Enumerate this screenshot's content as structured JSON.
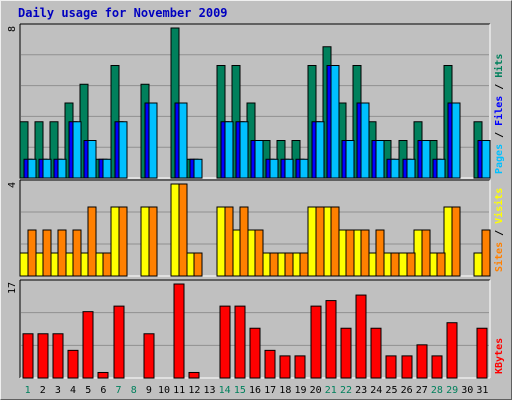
{
  "title": "Daily usage for November 2009",
  "chart_data": [
    {
      "type": "bar",
      "panel": "top",
      "ymax_label": "8",
      "ylim": [
        0,
        8
      ],
      "legend": [
        "Pages",
        "Files",
        "Hits"
      ],
      "grid": true,
      "categories": [
        "1",
        "2",
        "3",
        "4",
        "5",
        "6",
        "7",
        "8",
        "9",
        "10",
        "11",
        "12",
        "13",
        "14",
        "15",
        "16",
        "17",
        "18",
        "19",
        "20",
        "21",
        "22",
        "23",
        "24",
        "25",
        "26",
        "27",
        "28",
        "29",
        "30",
        "31"
      ],
      "series": [
        {
          "name": "Hits",
          "values": [
            3,
            3,
            3,
            4,
            5,
            1,
            6,
            0,
            5,
            0,
            8,
            1,
            0,
            6,
            6,
            4,
            2,
            2,
            2,
            6,
            7,
            4,
            6,
            3,
            2,
            2,
            3,
            2,
            6,
            0,
            3
          ]
        },
        {
          "name": "Files",
          "values": [
            1,
            1,
            1,
            3,
            2,
            1,
            3,
            0,
            4,
            0,
            4,
            1,
            0,
            3,
            3,
            2,
            1,
            1,
            1,
            3,
            6,
            2,
            4,
            2,
            1,
            1,
            2,
            1,
            4,
            0,
            2
          ]
        },
        {
          "name": "Pages",
          "values": [
            1,
            1,
            1,
            3,
            2,
            1,
            3,
            0,
            4,
            0,
            4,
            1,
            0,
            3,
            3,
            2,
            1,
            1,
            1,
            3,
            6,
            2,
            4,
            2,
            1,
            1,
            2,
            1,
            4,
            0,
            2
          ]
        }
      ]
    },
    {
      "type": "bar",
      "panel": "middle",
      "ymax_label": "4",
      "ylim": [
        0,
        4
      ],
      "legend": [
        "Sites",
        "Visits"
      ],
      "grid": true,
      "categories": [
        "1",
        "2",
        "3",
        "4",
        "5",
        "6",
        "7",
        "8",
        "9",
        "10",
        "11",
        "12",
        "13",
        "14",
        "15",
        "16",
        "17",
        "18",
        "19",
        "20",
        "21",
        "22",
        "23",
        "24",
        "25",
        "26",
        "27",
        "28",
        "29",
        "30",
        "31"
      ],
      "series": [
        {
          "name": "Visits",
          "values": [
            1,
            1,
            1,
            1,
            1,
            1,
            3,
            0,
            3,
            0,
            4,
            1,
            0,
            3,
            2,
            2,
            1,
            1,
            1,
            3,
            3,
            2,
            2,
            1,
            1,
            1,
            2,
            1,
            3,
            0,
            1
          ]
        },
        {
          "name": "Sites",
          "values": [
            2,
            2,
            2,
            2,
            3,
            1,
            3,
            0,
            3,
            0,
            4,
            1,
            0,
            3,
            3,
            2,
            1,
            1,
            1,
            3,
            3,
            2,
            2,
            2,
            1,
            1,
            2,
            1,
            3,
            0,
            2
          ]
        }
      ]
    },
    {
      "type": "bar",
      "panel": "bottom",
      "ymax_label": "17",
      "ylim": [
        0,
        17
      ],
      "legend": [
        "KBytes"
      ],
      "grid": true,
      "categories": [
        "1",
        "2",
        "3",
        "4",
        "5",
        "6",
        "7",
        "8",
        "9",
        "10",
        "11",
        "12",
        "13",
        "14",
        "15",
        "16",
        "17",
        "18",
        "19",
        "20",
        "21",
        "22",
        "23",
        "24",
        "25",
        "26",
        "27",
        "28",
        "29",
        "30",
        "31"
      ],
      "series": [
        {
          "name": "KBytes",
          "values": [
            8,
            8,
            8,
            5,
            12,
            1,
            13,
            0,
            8,
            0,
            17,
            1,
            0,
            13,
            13,
            9,
            5,
            4,
            4,
            13,
            14,
            9,
            15,
            9,
            4,
            4,
            6,
            4,
            10,
            0,
            9
          ]
        }
      ]
    }
  ],
  "weekend_days": [
    "1",
    "7",
    "8",
    "14",
    "15",
    "21",
    "22",
    "28",
    "29"
  ],
  "colors": {
    "background": "#c0c0c0",
    "plot_bg": "#c0c0c0",
    "grid": "#909090",
    "title": "#0000c0",
    "hits": "#00805c",
    "files": "#0000ff",
    "pages": "#00c0ff",
    "visits": "#ffff00",
    "sites": "#ff8000",
    "kbytes": "#ff0000",
    "weekday_label": "#000000",
    "weekend_label": "#00805c"
  }
}
